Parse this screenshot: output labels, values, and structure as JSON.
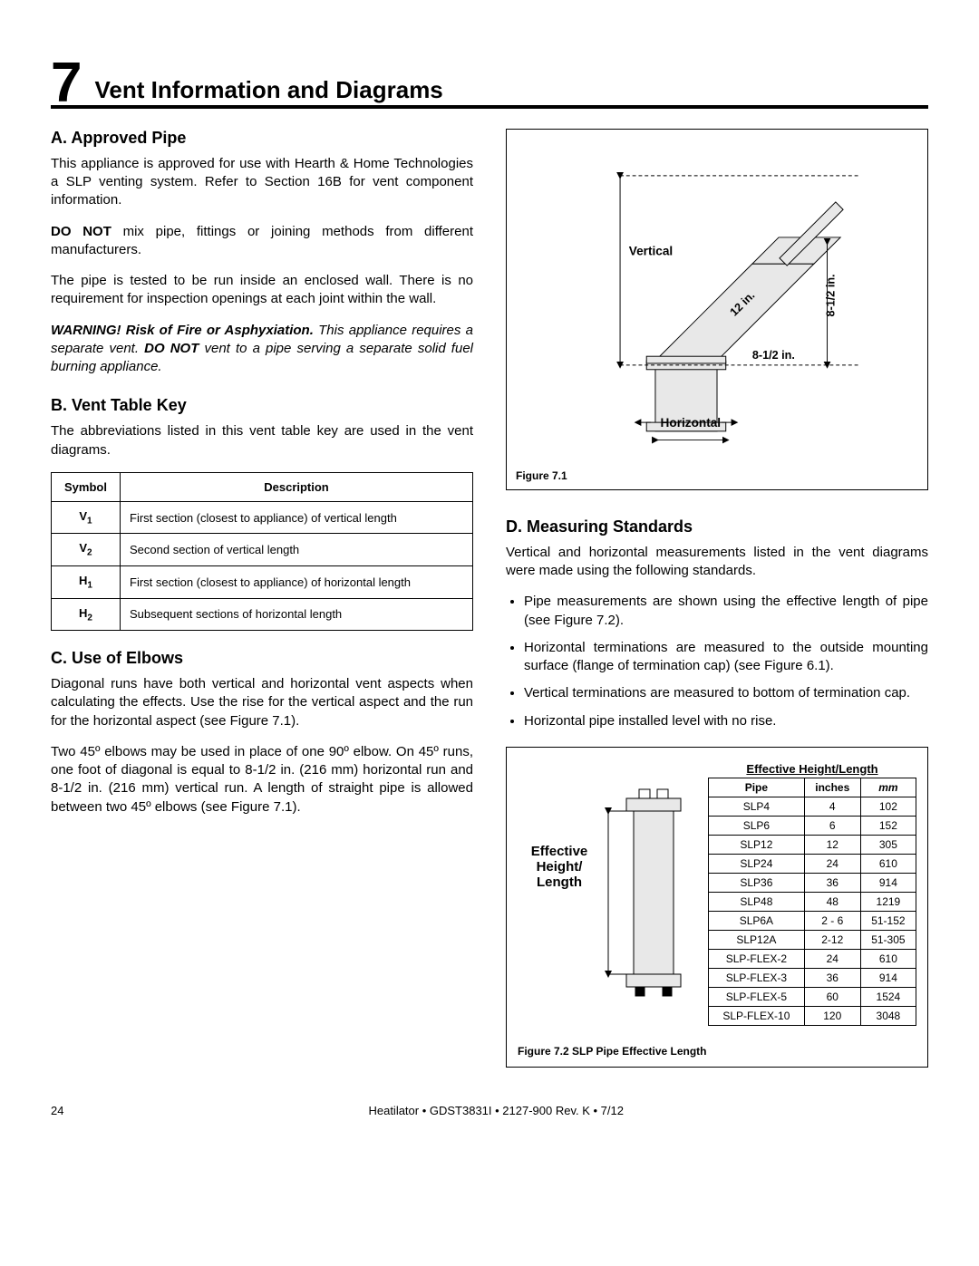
{
  "section": {
    "number": "7",
    "title": "Vent Information and Diagrams"
  },
  "a": {
    "heading": "A.  Approved Pipe",
    "p1": "This appliance is approved for use with Hearth & Home Technologies a SLP venting system.  Refer to Section 16B for vent component information.",
    "p2_pre": "DO NOT",
    "p2_post": " mix pipe, ﬁttings or joining methods from different manufacturers.",
    "p3": "The pipe is tested to be run inside an enclosed wall. There is no requirement for inspection openings at each joint within the wall.",
    "warn_pre": "WARNING! Risk of Fire or Asphyxiation.",
    "warn_mid": " This appliance requires a separate vent. ",
    "warn_bold": "DO NOT",
    "warn_post": " vent to a pipe serving a separate solid fuel burning appliance."
  },
  "b": {
    "heading": "B.  Vent Table Key",
    "p1": "The abbreviations listed in this vent table key are used in the vent diagrams.",
    "table": {
      "hdr_sym": "Symbol",
      "hdr_desc": "Description",
      "rows": [
        {
          "sym_main": "V",
          "sym_sub": "1",
          "desc": "First section (closest to appliance) of vertical length"
        },
        {
          "sym_main": "V",
          "sym_sub": "2",
          "desc": "Second section of vertical length"
        },
        {
          "sym_main": "H",
          "sym_sub": "1",
          "desc": "First section (closest to appliance) of horizontal length"
        },
        {
          "sym_main": "H",
          "sym_sub": "2",
          "desc": "Subsequent sections of horizontal length"
        }
      ]
    }
  },
  "c": {
    "heading": "C.  Use of Elbows",
    "p1": "Diagonal runs have both vertical and horizontal vent aspects when calculating the effects. Use the rise for the vertical aspect and the run for the horizontal aspect (see Figure 7.1).",
    "p2": "Two 45º elbows may be used in place of one 90º elbow. On 45º runs, one foot of diagonal is equal to 8-1/2 in. (216 mm) horizontal run and 8-1/2 in. (216 mm) vertical run. A length of straight pipe is allowed between two 45º elbows (see Figure 7.1)."
  },
  "fig71": {
    "caption": "Figure 7.1",
    "lbl_vertical": "Vertical",
    "lbl_horizontal": "Horizontal",
    "lbl_12in": "12 in.",
    "lbl_812_top": "8-1/2 in.",
    "lbl_812_side": "8-1/2 in."
  },
  "d": {
    "heading": "D.  Measuring Standards",
    "p1": "Vertical and horizontal measurements listed in the vent diagrams were made using the following standards.",
    "bullets": [
      "Pipe measurements are shown using the effective length of pipe (see Figure 7.2).",
      "Horizontal terminations are measured to the outside mounting surface (ﬂange of termination cap) (see Figure 6.1).",
      "Vertical terminations are measured to bottom of termination cap.",
      "Horizontal pipe installed level with no rise."
    ]
  },
  "fig72": {
    "header": "Effective Height/Length",
    "col_pipe": "Pipe",
    "col_in": "inches",
    "col_mm": "mm",
    "label": "Effective Height/ Length",
    "caption": "Figure 7.2  SLP Pipe Effective Length",
    "rows": [
      {
        "pipe": "SLP4",
        "in": "4",
        "mm": "102"
      },
      {
        "pipe": "SLP6",
        "in": "6",
        "mm": "152"
      },
      {
        "pipe": "SLP12",
        "in": "12",
        "mm": "305"
      },
      {
        "pipe": "SLP24",
        "in": "24",
        "mm": "610"
      },
      {
        "pipe": "SLP36",
        "in": "36",
        "mm": "914"
      },
      {
        "pipe": "SLP48",
        "in": "48",
        "mm": "1219"
      },
      {
        "pipe": "SLP6A",
        "in": "2 - 6",
        "mm": "51-152"
      },
      {
        "pipe": "SLP12A",
        "in": "2-12",
        "mm": "51-305"
      },
      {
        "pipe": "SLP-FLEX-2",
        "in": "24",
        "mm": "610"
      },
      {
        "pipe": "SLP-FLEX-3",
        "in": "36",
        "mm": "914"
      },
      {
        "pipe": "SLP-FLEX-5",
        "in": "60",
        "mm": "1524"
      },
      {
        "pipe": "SLP-FLEX-10",
        "in": "120",
        "mm": "3048"
      }
    ]
  },
  "footer": {
    "page": "24",
    "text": "Heatilator  •  GDST3831I  •  2127-900 Rev. K  •  7/12"
  }
}
